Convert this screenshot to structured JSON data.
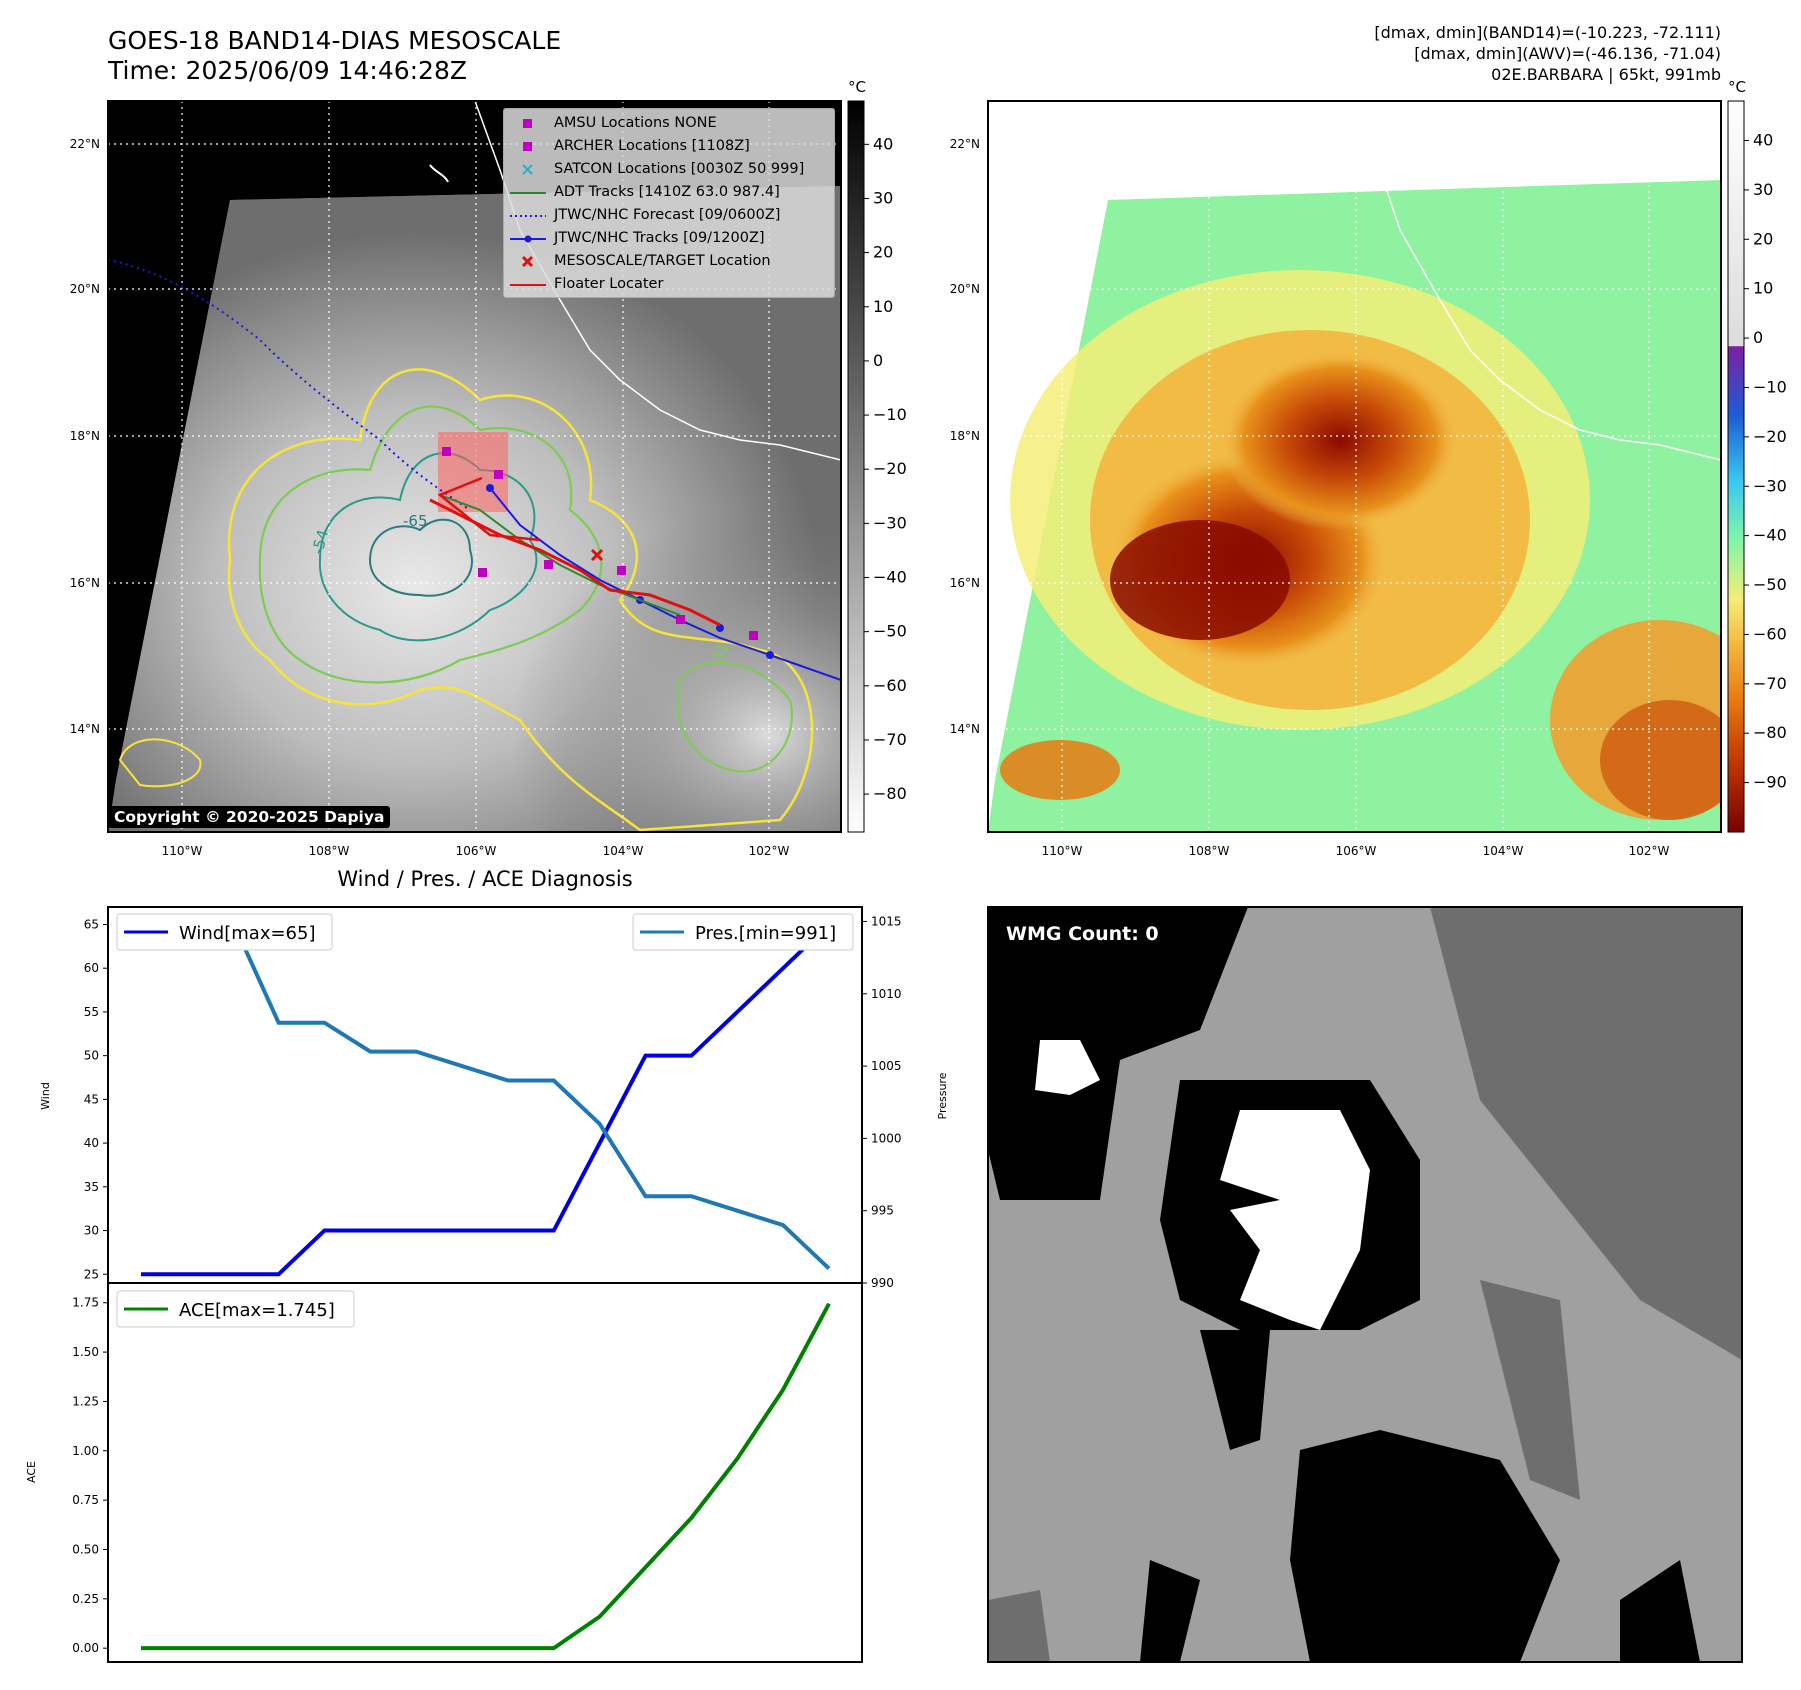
{
  "header": {
    "title_line1": "GOES-18 BAND14-DIAS MESOSCALE",
    "title_line2": "Time: 2025/06/09 14:46:28Z",
    "stats_line1": "[dmax, dmin](BAND14)=(-10.223, -72.111)",
    "stats_line2": "[dmax, dmin](AWV)=(-46.136, -71.04)",
    "stats_line3": "02E.BARBARA | 65kt, 991mb"
  },
  "map": {
    "lat_ticks": [
      "22°N",
      "20°N",
      "18°N",
      "16°N",
      "14°N"
    ],
    "lon_ticks": [
      "110°W",
      "108°W",
      "106°W",
      "104°W",
      "102°W"
    ],
    "copyright": "Copyright © 2020-2025 Dapiya",
    "contour_labels": [
      "-54",
      "-65",
      "-31"
    ],
    "colors": {
      "coast": "#ffffff",
      "grid": "#ffffff",
      "contour_yellow": "#f7e43a",
      "contour_green": "#7ccc52",
      "contour_teal": "#2a9a8c",
      "contour_dark": "#2a7a80"
    }
  },
  "legend": {
    "items": [
      {
        "label": "AMSU Locations NONE",
        "marker": "square",
        "color": "#c000c0"
      },
      {
        "label": "ARCHER Locations [1108Z]",
        "marker": "square",
        "color": "#c000c0"
      },
      {
        "label": "SATCON Locations [0030Z 50 999]",
        "marker": "x",
        "color": "#18b8c8"
      },
      {
        "label": "ADT Tracks [1410Z 63.0 987.4]",
        "marker": "line",
        "color": "#2a8a2a"
      },
      {
        "label": "JTWC/NHC Forecast [09/0600Z]",
        "marker": "dotted",
        "color": "#1a1ae0"
      },
      {
        "label": "JTWC/NHC Tracks [09/1200Z]",
        "marker": "line-dot",
        "color": "#1a1ae0"
      },
      {
        "label": "MESOSCALE/TARGET Location",
        "marker": "x",
        "color": "#e01010"
      },
      {
        "label": "Floater Locater",
        "marker": "line",
        "color": "#e01010"
      }
    ]
  },
  "colorbar_gray": {
    "unit": "°C",
    "ticks": [
      "40",
      "30",
      "20",
      "10",
      "0",
      "−10",
      "−20",
      "−30",
      "−40",
      "−50",
      "−60",
      "−70",
      "−80"
    ]
  },
  "colorbar_color": {
    "unit": "°C",
    "ticks": [
      "40",
      "30",
      "20",
      "10",
      "0",
      "−10",
      "−20",
      "−30",
      "−40",
      "−50",
      "−60",
      "−70",
      "−80",
      "−90"
    ]
  },
  "wmg": {
    "label": "WMG Count: 0"
  },
  "chart_data": [
    {
      "type": "line",
      "title": "Wind / Pres. / ACE Diagnosis",
      "x": [
        0,
        1,
        2,
        3,
        4,
        5,
        6,
        7,
        8,
        9,
        10,
        11,
        12,
        13,
        14,
        15
      ],
      "series": [
        {
          "name": "Wind[max=65]",
          "axis": "left",
          "color": "#0000e0",
          "values": [
            25,
            25,
            25,
            25,
            30,
            30,
            30,
            30,
            30,
            30,
            40,
            50,
            50,
            55,
            60,
            65
          ]
        },
        {
          "name": "Pres.[min=991]",
          "axis": "right",
          "color": "#1f77b4",
          "values": [
            1015,
            1015,
            1015,
            1008,
            1008,
            1006,
            1006,
            1005,
            1004,
            1004,
            1001,
            996,
            996,
            995,
            994,
            991
          ]
        }
      ],
      "ylabel": "Wind",
      "y2label": "Pressure",
      "ylim": [
        24,
        67
      ],
      "y2lim": [
        990,
        1016
      ],
      "yticks": [
        "25",
        "30",
        "35",
        "40",
        "45",
        "50",
        "55",
        "60",
        "65"
      ],
      "y2ticks": [
        "990",
        "995",
        "1000",
        "1005",
        "1010",
        "1015"
      ]
    },
    {
      "type": "line",
      "x": [
        0,
        1,
        2,
        3,
        4,
        5,
        6,
        7,
        8,
        9,
        10,
        11,
        12,
        13,
        14,
        15
      ],
      "series": [
        {
          "name": "ACE[max=1.745]",
          "color": "#008000",
          "values": [
            0,
            0,
            0,
            0,
            0,
            0,
            0,
            0,
            0,
            0,
            0.16,
            0.41,
            0.66,
            0.96,
            1.31,
            1.745
          ]
        }
      ],
      "ylabel": "ACE",
      "ylim": [
        -0.07,
        1.85
      ],
      "yticks": [
        "0.00",
        "0.25",
        "0.50",
        "0.75",
        "1.00",
        "1.25",
        "1.50",
        "1.75"
      ]
    }
  ]
}
